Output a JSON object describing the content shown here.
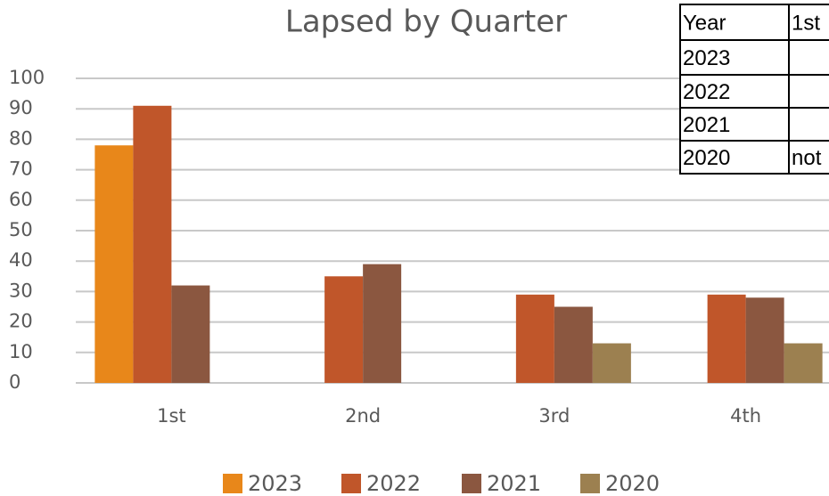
{
  "chart_data": {
    "type": "bar",
    "title": "Lapsed by Quarter",
    "categories": [
      "1st",
      "2nd",
      "3rd",
      "4th"
    ],
    "series": [
      {
        "name": "2023",
        "color": "#e8871a",
        "values": [
          78,
          null,
          null,
          null
        ]
      },
      {
        "name": "2022",
        "color": "#c0562a",
        "values": [
          91,
          35,
          29,
          29
        ]
      },
      {
        "name": "2021",
        "color": "#8b5740",
        "values": [
          32,
          39,
          25,
          28
        ]
      },
      {
        "name": "2020",
        "color": "#9c8050",
        "values": [
          null,
          null,
          13,
          13
        ]
      }
    ],
    "ylim": [
      0,
      100
    ],
    "yticks": [
      0,
      10,
      20,
      30,
      40,
      50,
      60,
      70,
      80,
      90,
      100
    ],
    "grid": true,
    "legend": "bottom"
  },
  "table": {
    "header": [
      "Year",
      "1st"
    ],
    "rows": [
      [
        "2023"
      ],
      [
        "2022"
      ],
      [
        "2021"
      ],
      [
        "2020",
        "not"
      ]
    ]
  }
}
